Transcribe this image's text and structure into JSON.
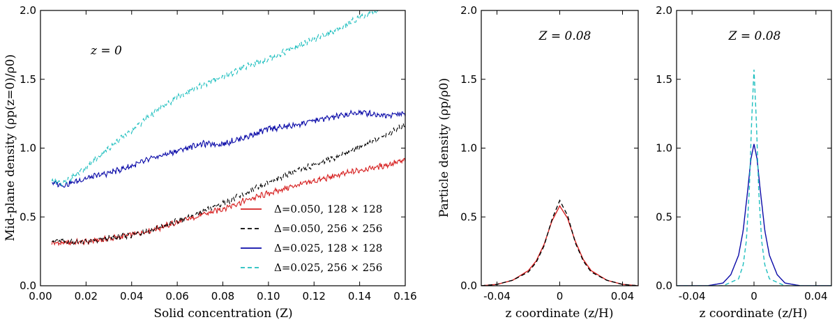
{
  "chart_data": [
    {
      "type": "line",
      "panel": "left",
      "title": "",
      "annotation": "z = 0",
      "xlabel": "Solid concentration (Z)",
      "ylabel": "Mid-plane density (ρp(z=0)/ρ0)",
      "xlim": [
        0.0,
        0.16
      ],
      "ylim": [
        0.0,
        2.0
      ],
      "xticks": [
        0.0,
        0.02,
        0.04,
        0.06,
        0.08,
        0.1,
        0.12,
        0.14,
        0.16
      ],
      "xtick_labels": [
        "0.00",
        "0.02",
        "0.04",
        "0.06",
        "0.08",
        "0.10",
        "0.12",
        "0.14",
        "0.16"
      ],
      "yticks": [
        0.0,
        0.5,
        1.0,
        1.5,
        2.0
      ],
      "ytick_labels": [
        "0.0",
        "0.5",
        "1.0",
        "1.5",
        "2.0"
      ],
      "legend_position": "bottom-right",
      "series": [
        {
          "name": "Δ=0.050,  128 × 128",
          "color": "#d62020",
          "style": "solid",
          "x": [
            0.005,
            0.01,
            0.02,
            0.03,
            0.04,
            0.05,
            0.06,
            0.07,
            0.08,
            0.09,
            0.1,
            0.11,
            0.12,
            0.13,
            0.14,
            0.15,
            0.16
          ],
          "y": [
            0.31,
            0.31,
            0.32,
            0.34,
            0.37,
            0.41,
            0.46,
            0.51,
            0.56,
            0.62,
            0.67,
            0.72,
            0.76,
            0.8,
            0.84,
            0.87,
            0.91
          ]
        },
        {
          "name": "Δ=0.050,  256 × 256",
          "color": "#000000",
          "style": "dashed",
          "x": [
            0.005,
            0.01,
            0.02,
            0.03,
            0.04,
            0.05,
            0.06,
            0.07,
            0.08,
            0.09,
            0.1,
            0.11,
            0.12,
            0.13,
            0.14,
            0.15,
            0.16
          ],
          "y": [
            0.33,
            0.32,
            0.32,
            0.34,
            0.37,
            0.41,
            0.47,
            0.53,
            0.6,
            0.67,
            0.75,
            0.82,
            0.88,
            0.94,
            1.01,
            1.08,
            1.17
          ]
        },
        {
          "name": "Δ=0.025,  128 × 128",
          "color": "#0a0aa8",
          "style": "solid",
          "x": [
            0.005,
            0.01,
            0.02,
            0.03,
            0.04,
            0.05,
            0.06,
            0.07,
            0.08,
            0.09,
            0.1,
            0.11,
            0.12,
            0.13,
            0.14,
            0.15,
            0.16
          ],
          "y": [
            0.75,
            0.73,
            0.78,
            0.82,
            0.87,
            0.93,
            0.98,
            1.03,
            1.03,
            1.08,
            1.14,
            1.16,
            1.2,
            1.23,
            1.26,
            1.24,
            1.25
          ]
        },
        {
          "name": "Δ=0.025,  256 × 256",
          "color": "#1fbfbf",
          "style": "dashed",
          "x": [
            0.005,
            0.01,
            0.02,
            0.03,
            0.04,
            0.05,
            0.06,
            0.07,
            0.08,
            0.09,
            0.1,
            0.11,
            0.12,
            0.13,
            0.14,
            0.148
          ],
          "y": [
            0.77,
            0.74,
            0.86,
            1.0,
            1.13,
            1.26,
            1.37,
            1.45,
            1.52,
            1.59,
            1.65,
            1.72,
            1.79,
            1.86,
            1.95,
            2.0
          ]
        }
      ]
    },
    {
      "type": "line",
      "panel": "middle",
      "title": "",
      "annotation": "Z = 0.08",
      "xlabel": "z coordinate (z/H)",
      "ylabel": "Particle density (ρp/ρ0)",
      "xlim": [
        -0.05,
        0.05
      ],
      "ylim": [
        0.0,
        2.0
      ],
      "xticks": [
        -0.04,
        0.0,
        0.04
      ],
      "xtick_labels": [
        "-0.04",
        "0",
        "0.04"
      ],
      "yticks": [
        0.0,
        0.5,
        1.0,
        1.5,
        2.0
      ],
      "ytick_labels": [
        "0.0",
        "0.5",
        "1.0",
        "1.5",
        "2.0"
      ],
      "series": [
        {
          "name": "Δ=0.050,  128 × 128",
          "color": "#d62020",
          "style": "solid",
          "x": [
            -0.05,
            -0.04,
            -0.03,
            -0.02,
            -0.015,
            -0.01,
            -0.005,
            0.0,
            0.005,
            0.01,
            0.015,
            0.02,
            0.03,
            0.04,
            0.05
          ],
          "y": [
            0.0,
            0.01,
            0.04,
            0.11,
            0.18,
            0.3,
            0.47,
            0.58,
            0.49,
            0.32,
            0.19,
            0.11,
            0.04,
            0.01,
            0.0
          ]
        },
        {
          "name": "Δ=0.050,  256 × 256",
          "color": "#000000",
          "style": "dashed",
          "x": [
            -0.05,
            -0.04,
            -0.03,
            -0.02,
            -0.015,
            -0.01,
            -0.005,
            0.0,
            0.005,
            0.01,
            0.015,
            0.02,
            0.03,
            0.04,
            0.05
          ],
          "y": [
            0.0,
            0.01,
            0.04,
            0.1,
            0.17,
            0.29,
            0.48,
            0.62,
            0.51,
            0.31,
            0.18,
            0.1,
            0.04,
            0.01,
            0.0
          ]
        }
      ]
    },
    {
      "type": "line",
      "panel": "right",
      "title": "",
      "annotation": "Z = 0.08",
      "xlabel": "z coordinate (z/H)",
      "ylabel": "",
      "xlim": [
        -0.05,
        0.05
      ],
      "ylim": [
        0.0,
        2.0
      ],
      "xticks": [
        -0.04,
        0.0,
        0.04
      ],
      "xtick_labels": [
        "-0.04",
        "0",
        "0.04"
      ],
      "yticks": [
        0.0,
        0.5,
        1.0,
        1.5,
        2.0
      ],
      "ytick_labels": [
        "0.0",
        "0.5",
        "1.0",
        "1.5",
        "2.0"
      ],
      "series": [
        {
          "name": "Δ=0.025,  128 × 128",
          "color": "#0a0aa8",
          "style": "solid",
          "x": [
            -0.05,
            -0.03,
            -0.02,
            -0.015,
            -0.01,
            -0.007,
            -0.004,
            -0.002,
            0.0,
            0.002,
            0.004,
            0.007,
            0.01,
            0.015,
            0.02,
            0.03,
            0.05
          ],
          "y": [
            0.0,
            0.0,
            0.02,
            0.08,
            0.22,
            0.4,
            0.7,
            0.92,
            1.03,
            0.92,
            0.7,
            0.4,
            0.22,
            0.08,
            0.02,
            0.0,
            0.0
          ]
        },
        {
          "name": "Δ=0.025,  256 × 256",
          "color": "#1fbfbf",
          "style": "dashed",
          "x": [
            -0.05,
            -0.02,
            -0.01,
            -0.007,
            -0.005,
            -0.003,
            -0.0015,
            0.0,
            0.0015,
            0.003,
            0.005,
            0.007,
            0.01,
            0.02,
            0.05
          ],
          "y": [
            0.0,
            0.0,
            0.05,
            0.15,
            0.32,
            0.7,
            1.2,
            1.57,
            1.2,
            0.7,
            0.32,
            0.15,
            0.05,
            0.0,
            0.0
          ]
        }
      ]
    }
  ]
}
